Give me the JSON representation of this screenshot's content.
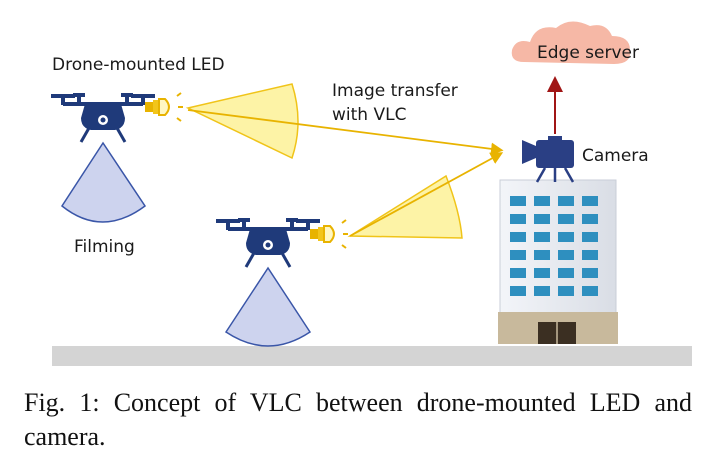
{
  "labels": {
    "drone_led": "Drone-mounted LED",
    "image_transfer_line1": "Image transfer",
    "image_transfer_line2": "with VLC",
    "edge_server": "Edge server",
    "camera": "Camera",
    "filming": "Filming"
  },
  "caption": "Fig. 1: Concept of VLC between drone-mounted LED and camera.",
  "colors": {
    "drone": "#1f3a7a",
    "led": "#f2c51b",
    "light_beam": "#fdf3a6",
    "filming_cone": "#cdd3ee",
    "building": "#e7eaf0",
    "window": "#2e8fbf",
    "cloud": "#f6b8a6",
    "ground": "#d4d4d4",
    "arrow": "#a01515"
  }
}
